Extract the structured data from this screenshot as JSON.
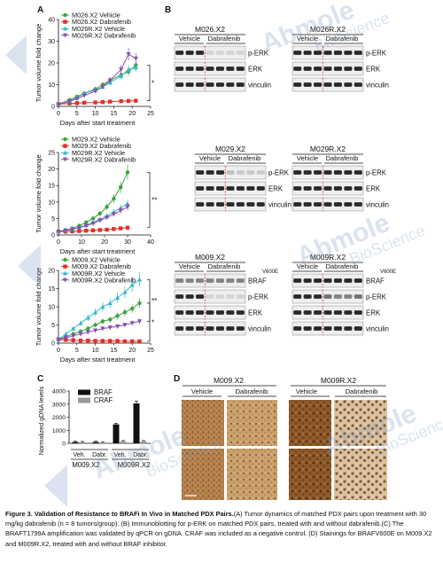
{
  "panels": {
    "a_label": "A",
    "b_label": "B",
    "c_label": "C",
    "d_label": "D"
  },
  "growth_charts": [
    {
      "ylabel": "Tumor volume fold change",
      "xlabel": "Days after start treatment",
      "xlim": [
        0,
        25
      ],
      "ylim": [
        0,
        40
      ],
      "xticks": [
        0,
        5,
        10,
        15,
        20,
        25
      ],
      "yticks": [
        0,
        10,
        20,
        30,
        40
      ],
      "series": [
        {
          "name": "M026.X2 Vehicle",
          "color": "#3aa53a",
          "marker": "circle",
          "x": [
            0,
            3,
            5,
            7,
            10,
            12,
            14,
            17,
            19,
            21
          ],
          "y": [
            1,
            3,
            4.5,
            6,
            8,
            10,
            12,
            14.5,
            16,
            19
          ]
        },
        {
          "name": "M026.X2 Dabrafenib",
          "color": "#e0302a",
          "marker": "square",
          "x": [
            0,
            3,
            5,
            7,
            10,
            12,
            14,
            17,
            19,
            21
          ],
          "y": [
            1,
            1.4,
            1.5,
            1.7,
            1.8,
            2,
            2.2,
            2.4,
            2.5,
            2.6
          ]
        },
        {
          "name": "M026R.X2 Vehicle",
          "color": "#35b8c8",
          "marker": "triangle",
          "x": [
            0,
            3,
            5,
            7,
            10,
            12,
            14,
            17,
            19,
            21
          ],
          "y": [
            1,
            2.5,
            4,
            6,
            7.5,
            9,
            11,
            14,
            17,
            18
          ]
        },
        {
          "name": "M026R.X2 Dabrafenib",
          "color": "#8a4fb0",
          "marker": "inverted-triangle",
          "x": [
            0,
            3,
            5,
            7,
            10,
            12,
            14,
            17,
            19,
            21
          ],
          "y": [
            1,
            2.3,
            3.5,
            5,
            7,
            9,
            12,
            17,
            24,
            22
          ]
        }
      ],
      "sig": "*"
    },
    {
      "ylabel": "Tumor volume fold change",
      "xlabel": "Days after start treatment",
      "xlim": [
        0,
        40
      ],
      "ylim": [
        0,
        25
      ],
      "xticks": [
        0,
        10,
        20,
        30,
        40
      ],
      "yticks": [
        0,
        5,
        10,
        15,
        20,
        25
      ],
      "series": [
        {
          "name": "M029.X2 Vehicle",
          "color": "#3aa53a",
          "marker": "circle",
          "x": [
            0,
            3,
            6,
            9,
            12,
            15,
            18,
            21,
            24,
            27,
            30
          ],
          "y": [
            1,
            1.5,
            2,
            2.8,
            3.8,
            5,
            6.5,
            8.5,
            11,
            14.5,
            19
          ]
        },
        {
          "name": "M029.X2 Dabrafenib",
          "color": "#e0302a",
          "marker": "square",
          "x": [
            0,
            3,
            6,
            9,
            12,
            15,
            18,
            21,
            24,
            27,
            30
          ],
          "y": [
            1,
            1,
            1.1,
            1.2,
            1.3,
            1.4,
            1.5,
            1.6,
            1.8,
            2,
            2.2
          ]
        },
        {
          "name": "M029R.X2 Vehicle",
          "color": "#35b8c8",
          "marker": "triangle",
          "x": [
            0,
            3,
            6,
            9,
            12,
            15,
            18,
            21,
            24,
            27,
            30
          ],
          "y": [
            1,
            1.3,
            1.8,
            2.3,
            3,
            3.8,
            4.8,
            5.8,
            7,
            8.2,
            9.5
          ]
        },
        {
          "name": "M029R.X2 Dabrafenib",
          "color": "#8a4fb0",
          "marker": "inverted-triangle",
          "x": [
            0,
            3,
            6,
            9,
            12,
            15,
            18,
            21,
            24,
            27,
            30
          ],
          "y": [
            1,
            1.3,
            1.7,
            2.2,
            2.8,
            3.5,
            4.4,
            5.3,
            6.3,
            7.4,
            8.5
          ]
        }
      ],
      "sig": "**"
    },
    {
      "ylabel": "Tumor volume fold change",
      "xlabel": "Days after start treatment",
      "xlim": [
        0,
        25
      ],
      "ylim": [
        0,
        20
      ],
      "xticks": [
        0,
        5,
        10,
        15,
        20,
        25
      ],
      "yticks": [
        0,
        5,
        10,
        15,
        20
      ],
      "series": [
        {
          "name": "M009.X2 Vehicle",
          "color": "#3aa53a",
          "marker": "circle",
          "x": [
            0,
            2,
            4,
            6,
            8,
            10,
            12,
            14,
            16,
            18,
            20,
            22
          ],
          "y": [
            1,
            1.8,
            2.5,
            3.2,
            4,
            5,
            6,
            6.5,
            7.5,
            8.5,
            9.5,
            11
          ]
        },
        {
          "name": "M009.X2 Dabrafenib",
          "color": "#e0302a",
          "marker": "square",
          "x": [
            0,
            2,
            4,
            6,
            8,
            10,
            12,
            14,
            16,
            18,
            20,
            22
          ],
          "y": [
            1,
            0.9,
            0.8,
            0.7,
            0.7,
            0.6,
            0.6,
            0.6,
            0.6,
            0.5,
            0.5,
            0.5
          ]
        },
        {
          "name": "M009R.X2 Vehicle",
          "color": "#35b8c8",
          "marker": "triangle",
          "x": [
            0,
            2,
            4,
            6,
            8,
            10,
            12,
            14,
            16,
            18,
            20,
            22
          ],
          "y": [
            1,
            2.5,
            4,
            5.5,
            7,
            8.5,
            10,
            11,
            12.5,
            14,
            16,
            17.5
          ]
        },
        {
          "name": "M009R.X2 Dabrafenib",
          "color": "#8a4fb0",
          "marker": "inverted-triangle",
          "x": [
            0,
            2,
            4,
            6,
            8,
            10,
            12,
            14,
            16,
            18,
            20,
            22
          ],
          "y": [
            1,
            1.5,
            2,
            2.5,
            3,
            3.5,
            4,
            4.3,
            4.6,
            5,
            5.5,
            6
          ]
        }
      ],
      "sig": "*",
      "sig2": "**"
    }
  ],
  "blots": [
    {
      "title": "M026.X2",
      "vehicle": "Vehicle",
      "drug": "Dabrafenib",
      "rows": [
        "p-ERK",
        "ERK",
        "vinculin"
      ],
      "lanes": 7,
      "pattern": [
        [
          1,
          1,
          1,
          0.05,
          0.05,
          0.05,
          0.05
        ],
        [
          1,
          1,
          1,
          1,
          1,
          1,
          1
        ],
        [
          1,
          1,
          1,
          1,
          1,
          1,
          1
        ]
      ]
    },
    {
      "title": "M026R.X2",
      "vehicle": "Vehicle",
      "drug": "Dabrafenib",
      "rows": [
        "p-ERK",
        "ERK",
        "vinculin"
      ],
      "lanes": 7,
      "pattern": [
        [
          1,
          1,
          1,
          1,
          1,
          1,
          1
        ],
        [
          1,
          1,
          1,
          1,
          1,
          1,
          1
        ],
        [
          1,
          1,
          1,
          1,
          1,
          1,
          1
        ]
      ]
    },
    {
      "title": "M029.X2",
      "vehicle": "Vehicle",
      "drug": "Dabrafenib",
      "rows": [
        "p-ERK",
        "ERK",
        "vinculin"
      ],
      "lanes": 7,
      "pattern": [
        [
          1,
          1,
          1,
          0.15,
          0.1,
          0.12,
          0.1
        ],
        [
          1,
          1,
          1,
          1,
          1,
          1,
          1
        ],
        [
          1,
          1,
          1,
          1,
          1,
          1,
          1
        ]
      ]
    },
    {
      "title": "M029R.X2",
      "vehicle": "Vehicle",
      "drug": "Dabrafenib",
      "rows": [
        "p-ERK",
        "ERK",
        "vinculin"
      ],
      "lanes": 7,
      "pattern": [
        [
          1,
          1,
          1,
          1,
          1,
          1,
          1
        ],
        [
          1,
          1,
          1,
          1,
          1,
          1,
          1
        ],
        [
          1,
          1,
          1,
          1,
          1,
          1,
          1
        ]
      ]
    },
    {
      "title": "M009.X2",
      "vehicle": "Vehicle",
      "drug": "Dabrafenib",
      "rows": [
        "BRAF",
        "p-ERK",
        "ERK",
        "vinculin"
      ],
      "superscript": "V600E",
      "lanes": 7,
      "pattern": [
        [
          0.5,
          0.5,
          0.5,
          0.5,
          0.5,
          0.5,
          0.5
        ],
        [
          1,
          1,
          1,
          0.05,
          0.05,
          0.05,
          0.05
        ],
        [
          1,
          1,
          1,
          1,
          1,
          1,
          1
        ],
        [
          1,
          1,
          1,
          1,
          1,
          1,
          1
        ]
      ]
    },
    {
      "title": "M009R.X2",
      "vehicle": "Vehicle",
      "drug": "Dabrafenib",
      "rows": [
        "BRAF",
        "p-ERK",
        "ERK",
        "vinculin"
      ],
      "superscript": "V600E",
      "lanes": 7,
      "pattern": [
        [
          1,
          1,
          1,
          1,
          1,
          1,
          1
        ],
        [
          1,
          1,
          1,
          0.6,
          0.5,
          0.5,
          0.6
        ],
        [
          1,
          1,
          1,
          1,
          1,
          1,
          1
        ],
        [
          1,
          1,
          1,
          1,
          1,
          1,
          1
        ]
      ]
    }
  ],
  "gdna_chart": {
    "type": "bar",
    "ylabel": "Normalized gDNA levels",
    "ylim": [
      0,
      4000
    ],
    "yticks": [
      0,
      1000,
      2000,
      3000,
      4000
    ],
    "groups": [
      "M009.X2",
      "M009R.X2"
    ],
    "conditions": [
      "Veh.",
      "Dabr."
    ],
    "series": [
      {
        "name": "BRAF",
        "color": "#111111",
        "values": [
          100,
          100,
          1450,
          3050
        ]
      },
      {
        "name": "CRAF",
        "color": "#999999",
        "values": [
          80,
          60,
          150,
          150
        ]
      }
    ]
  },
  "staining": {
    "left_title": "M009.X2",
    "right_title": "M009R.X2",
    "vehicle": "Vehicle",
    "drug": "Dabrafenib"
  },
  "watermark": {
    "line1": "Abmole",
    "line2": "BioScience"
  },
  "caption": {
    "lead": "Figure 3. Validation of Resistance to BRAFi In Vivo in Matched PDX Pairs.",
    "body": "(A) Tumor dynamics of matched PDX pairs upon treatment with 30 mg/kg dabrafenib (n = 8 tumors/group). (B) Immunoblotting for p-ERK on matched PDX pairs, treated with and without dabrafenib.(C) The BRAFT1799A amplification was validated by qPCR on gDNA. CRAF was included as a negative control. (D) Stainings for BRAFV600E on M009.X2 and M009R.X2, treated with and without BRAF inhibitor."
  }
}
